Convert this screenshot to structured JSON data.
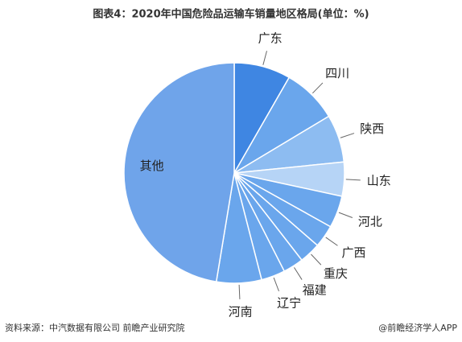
{
  "chart_data": {
    "type": "pie",
    "title": "图表4：2020年中国危险品运输车销量地区格局(单位：%)",
    "categories": [
      "广东",
      "四川",
      "陕西",
      "山东",
      "河北",
      "广西",
      "重庆",
      "福建",
      "辽宁",
      "河南",
      "其他"
    ],
    "values": [
      8.3,
      8.1,
      7,
      5,
      4.7,
      3.3,
      3.1,
      3,
      3.5,
      6.6,
      47.4
    ],
    "colors": [
      "#3f86e2",
      "#6aa6ec",
      "#8dbcf1",
      "#b6d4f6",
      "#6aa6ec",
      "#6aa6ec",
      "#6aa6ec",
      "#6aa6ec",
      "#6aa6ec",
      "#6aa6ec",
      "#6fa4ea"
    ],
    "source": "资料来源：中汽数据有限公司 前瞻产业研究院",
    "brand": "@前瞻经济学人APP"
  }
}
